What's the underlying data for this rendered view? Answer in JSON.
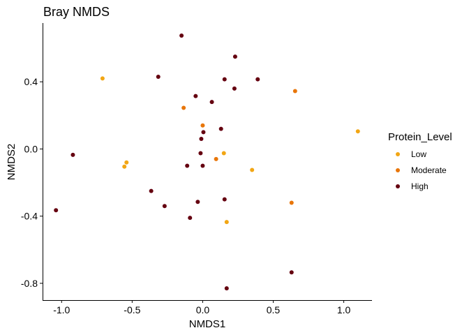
{
  "chart_data": {
    "type": "scatter",
    "title": "Bray NMDS",
    "xlabel": "NMDS1",
    "ylabel": "NMDS2",
    "xlim": [
      -1.13,
      1.2
    ],
    "ylim": [
      -0.9,
      0.75
    ],
    "xticks": [
      -1.0,
      -0.5,
      0.0,
      0.5,
      1.0
    ],
    "xtick_labels": [
      "-1.0",
      "-0.5",
      "0.0",
      "0.5",
      "1.0"
    ],
    "yticks": [
      -0.8,
      -0.4,
      0.0,
      0.4
    ],
    "ytick_labels": [
      "-0.8",
      "-0.4",
      "0.0",
      "0.4"
    ],
    "grid": false,
    "legend": {
      "title": "Protein_Level",
      "placement": "right"
    },
    "series": [
      {
        "name": "Low",
        "color": "#F2A614",
        "points": [
          [
            -0.71,
            0.42
          ],
          [
            -0.54,
            -0.08
          ],
          [
            -0.555,
            -0.105
          ],
          [
            0.15,
            -0.025
          ],
          [
            0.35,
            -0.125
          ],
          [
            0.17,
            -0.435
          ],
          [
            1.1,
            0.105
          ]
        ]
      },
      {
        "name": "Moderate",
        "color": "#E8760A",
        "points": [
          [
            -0.135,
            0.245
          ],
          [
            0.0,
            0.14
          ],
          [
            0.095,
            -0.06
          ],
          [
            0.655,
            0.345
          ],
          [
            0.63,
            -0.32
          ]
        ]
      },
      {
        "name": "High",
        "color": "#650010",
        "points": [
          [
            -0.15,
            0.675
          ],
          [
            0.23,
            0.55
          ],
          [
            -0.315,
            0.43
          ],
          [
            0.155,
            0.415
          ],
          [
            0.39,
            0.415
          ],
          [
            0.225,
            0.36
          ],
          [
            -0.05,
            0.315
          ],
          [
            0.065,
            0.28
          ],
          [
            0.13,
            0.12
          ],
          [
            0.005,
            0.1
          ],
          [
            -0.01,
            0.06
          ],
          [
            -0.015,
            -0.025
          ],
          [
            -0.11,
            -0.1
          ],
          [
            0.0,
            -0.1
          ],
          [
            -0.92,
            -0.035
          ],
          [
            -0.365,
            -0.25
          ],
          [
            -0.27,
            -0.34
          ],
          [
            -0.035,
            -0.315
          ],
          [
            0.155,
            -0.3
          ],
          [
            -0.09,
            -0.41
          ],
          [
            -1.04,
            -0.365
          ],
          [
            0.63,
            -0.735
          ],
          [
            0.17,
            -0.83
          ]
        ]
      }
    ]
  }
}
